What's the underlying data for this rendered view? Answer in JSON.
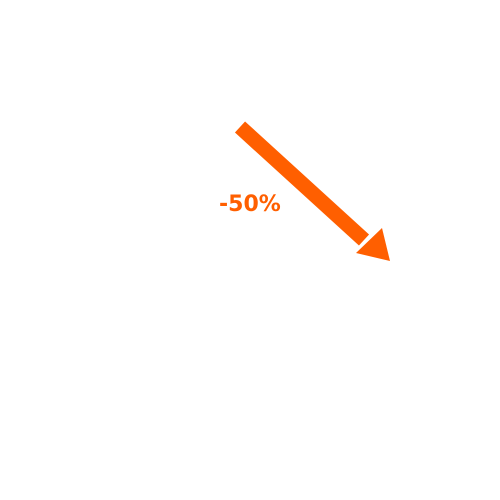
{
  "graphic": {
    "label": "-50%",
    "accent_color": "#ff5f00",
    "icon": "arrow-down-right-icon"
  }
}
